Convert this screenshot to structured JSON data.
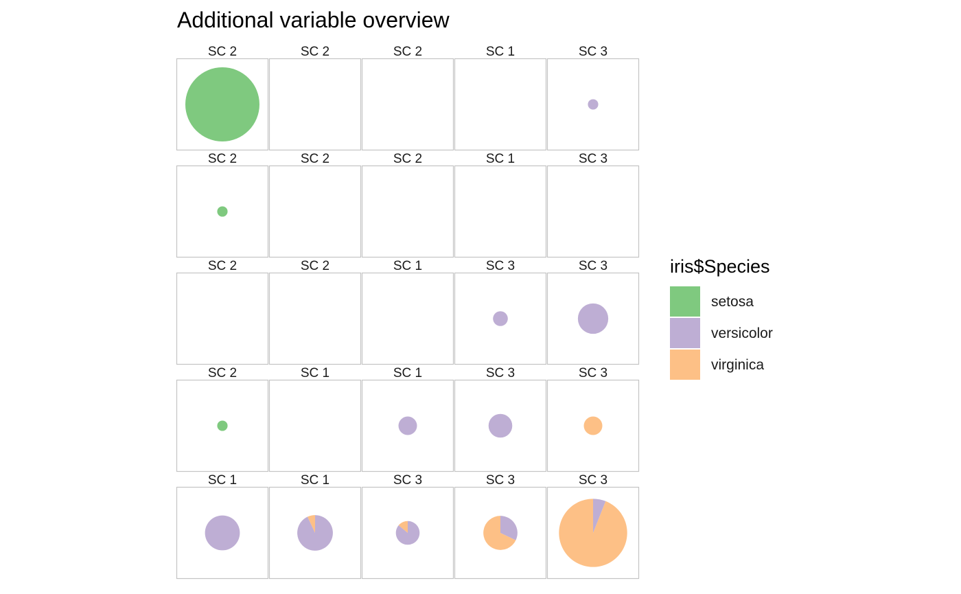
{
  "chart_data": {
    "type": "pie",
    "title": "Additional variable overview",
    "legend": {
      "title": "iris$Species",
      "position": "right",
      "entries": [
        {
          "key": "setosa",
          "label": "setosa",
          "color": "#7FC97F"
        },
        {
          "key": "versicolor",
          "label": "versicolor",
          "color": "#BEAED4"
        },
        {
          "key": "virginica",
          "label": "virginica",
          "color": "#FDC086"
        }
      ]
    },
    "grid": {
      "rows": 5,
      "cols": 5
    },
    "cells": [
      {
        "label": "SC 2",
        "size": 1.0,
        "slices": {
          "setosa": 1,
          "versicolor": 0,
          "virginica": 0
        }
      },
      {
        "label": "SC 2",
        "size": 0,
        "slices": {
          "setosa": 0,
          "versicolor": 0,
          "virginica": 0
        }
      },
      {
        "label": "SC 2",
        "size": 0,
        "slices": {
          "setosa": 0,
          "versicolor": 0,
          "virginica": 0
        }
      },
      {
        "label": "SC 1",
        "size": 0,
        "slices": {
          "setosa": 0,
          "versicolor": 0,
          "virginica": 0
        }
      },
      {
        "label": "SC 3",
        "size": 0.14,
        "slices": {
          "setosa": 0,
          "versicolor": 1,
          "virginica": 0
        }
      },
      {
        "label": "SC 2",
        "size": 0.14,
        "slices": {
          "setosa": 1,
          "versicolor": 0,
          "virginica": 0
        }
      },
      {
        "label": "SC 2",
        "size": 0,
        "slices": {
          "setosa": 0,
          "versicolor": 0,
          "virginica": 0
        }
      },
      {
        "label": "SC 2",
        "size": 0,
        "slices": {
          "setosa": 0,
          "versicolor": 0,
          "virginica": 0
        }
      },
      {
        "label": "SC 1",
        "size": 0,
        "slices": {
          "setosa": 0,
          "versicolor": 0,
          "virginica": 0
        }
      },
      {
        "label": "SC 3",
        "size": 0,
        "slices": {
          "setosa": 0,
          "versicolor": 0,
          "virginica": 0
        }
      },
      {
        "label": "SC 2",
        "size": 0,
        "slices": {
          "setosa": 0,
          "versicolor": 0,
          "virginica": 0
        }
      },
      {
        "label": "SC 2",
        "size": 0,
        "slices": {
          "setosa": 0,
          "versicolor": 0,
          "virginica": 0
        }
      },
      {
        "label": "SC 1",
        "size": 0,
        "slices": {
          "setosa": 0,
          "versicolor": 0,
          "virginica": 0
        }
      },
      {
        "label": "SC 3",
        "size": 0.2,
        "slices": {
          "setosa": 0,
          "versicolor": 1,
          "virginica": 0
        }
      },
      {
        "label": "SC 3",
        "size": 0.41,
        "slices": {
          "setosa": 0,
          "versicolor": 1,
          "virginica": 0
        }
      },
      {
        "label": "SC 2",
        "size": 0.14,
        "slices": {
          "setosa": 1,
          "versicolor": 0,
          "virginica": 0
        }
      },
      {
        "label": "SC 1",
        "size": 0,
        "slices": {
          "setosa": 0,
          "versicolor": 0,
          "virginica": 0
        }
      },
      {
        "label": "SC 1",
        "size": 0.25,
        "slices": {
          "setosa": 0,
          "versicolor": 1,
          "virginica": 0
        }
      },
      {
        "label": "SC 3",
        "size": 0.32,
        "slices": {
          "setosa": 0,
          "versicolor": 1,
          "virginica": 0
        }
      },
      {
        "label": "SC 3",
        "size": 0.25,
        "slices": {
          "setosa": 0,
          "versicolor": 0,
          "virginica": 1
        }
      },
      {
        "label": "SC 1",
        "size": 0.47,
        "slices": {
          "setosa": 0,
          "versicolor": 1,
          "virginica": 0
        }
      },
      {
        "label": "SC 1",
        "size": 0.48,
        "slices": {
          "setosa": 0,
          "versicolor": 0.93,
          "virginica": 0.07
        }
      },
      {
        "label": "SC 3",
        "size": 0.32,
        "slices": {
          "setosa": 0,
          "versicolor": 0.86,
          "virginica": 0.14
        }
      },
      {
        "label": "SC 3",
        "size": 0.46,
        "slices": {
          "setosa": 0,
          "versicolor": 0.32,
          "virginica": 0.68
        }
      },
      {
        "label": "SC 3",
        "size": 0.92,
        "slices": {
          "setosa": 0,
          "versicolor": 0.06,
          "virginica": 0.94
        }
      }
    ]
  }
}
